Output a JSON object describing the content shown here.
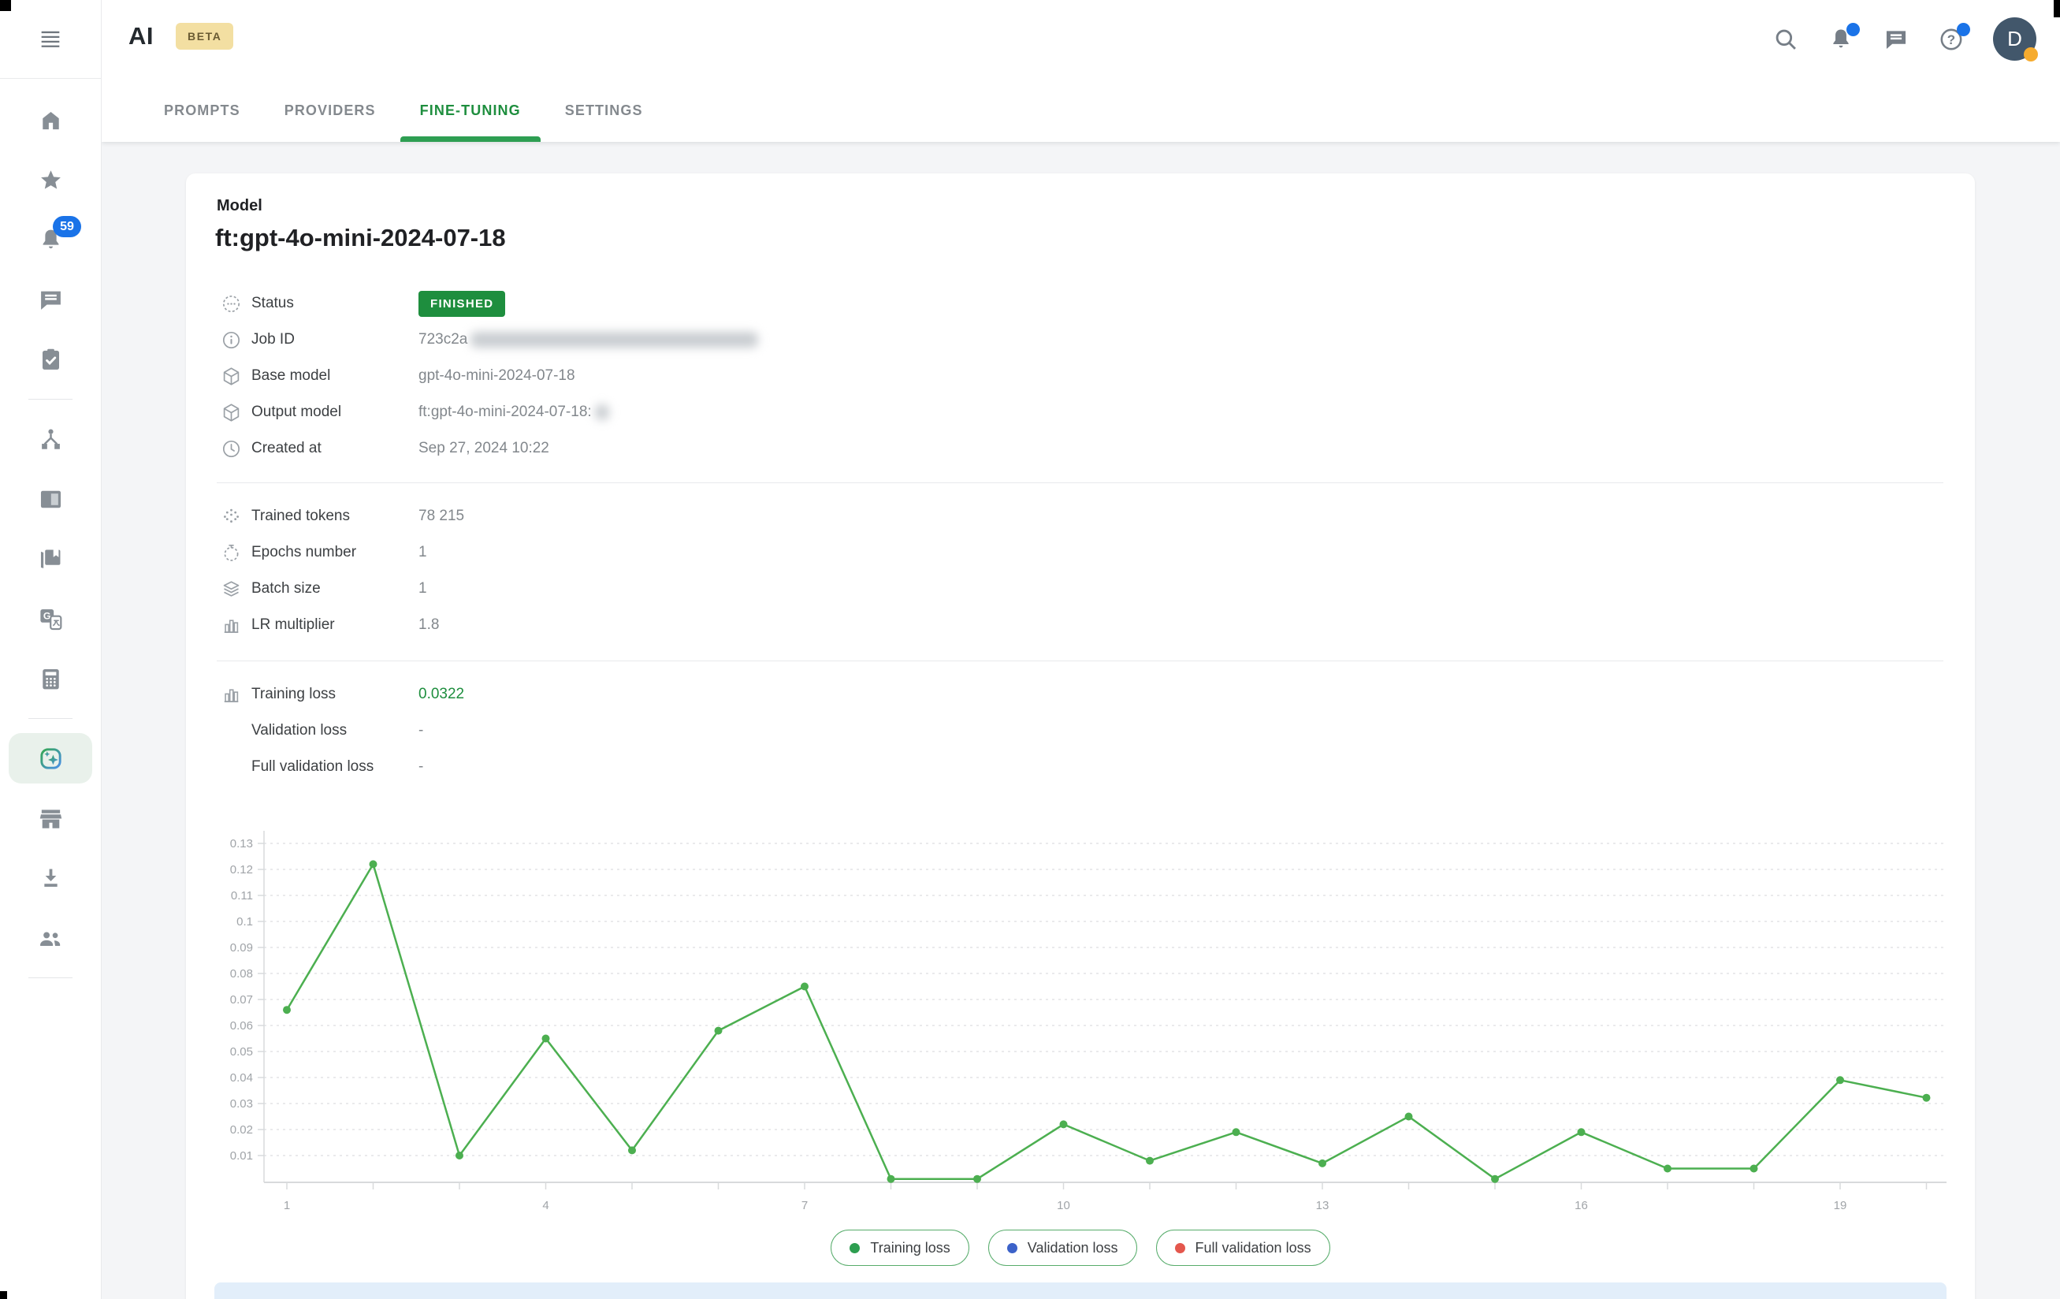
{
  "app": {
    "logo": "AI",
    "beta_badge": "BETA",
    "user_initial": "D"
  },
  "header_actions": [
    {
      "icon": "search",
      "name": "search-button"
    },
    {
      "icon": "bell",
      "name": "notifications-button",
      "dot": true
    },
    {
      "icon": "chat",
      "name": "feedback-button"
    },
    {
      "icon": "help",
      "name": "help-button",
      "dot": true
    }
  ],
  "tabs": [
    {
      "label": "PROMPTS",
      "name": "tab-prompts",
      "active": false
    },
    {
      "label": "PROVIDERS",
      "name": "tab-providers",
      "active": false
    },
    {
      "label": "FINE-TUNING",
      "name": "tab-fine-tuning",
      "active": true
    },
    {
      "label": "SETTINGS",
      "name": "tab-settings",
      "active": false
    }
  ],
  "sidebar": {
    "groups": [
      [
        {
          "icon": "home",
          "name": "sidebar-item-home"
        },
        {
          "icon": "star",
          "name": "sidebar-item-favorites"
        },
        {
          "icon": "bell",
          "name": "sidebar-item-notifications",
          "badge": "59"
        },
        {
          "icon": "chat",
          "name": "sidebar-item-messages"
        },
        {
          "icon": "tasks",
          "name": "sidebar-item-tasks"
        }
      ],
      [
        {
          "icon": "workflow",
          "name": "sidebar-item-workflows"
        },
        {
          "icon": "panel",
          "name": "sidebar-item-boards"
        },
        {
          "icon": "library",
          "name": "sidebar-item-library"
        },
        {
          "icon": "translate",
          "name": "sidebar-item-translate"
        },
        {
          "icon": "calculator",
          "name": "sidebar-item-calculator"
        }
      ],
      [
        {
          "icon": "ai",
          "name": "sidebar-item-ai-fine-tuning",
          "active": true
        },
        {
          "icon": "store",
          "name": "sidebar-item-store"
        },
        {
          "icon": "download",
          "name": "sidebar-item-downloads"
        },
        {
          "icon": "people",
          "name": "sidebar-item-users"
        }
      ]
    ]
  },
  "model": {
    "section_label": "Model",
    "title": "ft:gpt-4o-mini-2024-07-18",
    "info_rows": [
      {
        "icon": "status",
        "label": "Status",
        "badge": "FINISHED",
        "name": "row-status"
      },
      {
        "icon": "info",
        "label": "Job ID",
        "value": "723c2a",
        "blur": 365,
        "name": "row-job-id"
      },
      {
        "icon": "package",
        "label": "Base model",
        "value": "gpt-4o-mini-2024-07-18",
        "name": "row-base-model"
      },
      {
        "icon": "package",
        "label": "Output model",
        "value": "ft:gpt-4o-mini-2024-07-18:",
        "blur": 18,
        "name": "row-output-model"
      },
      {
        "icon": "clock",
        "label": "Created at",
        "value": "Sep 27, 2024 10:22",
        "name": "row-created-at"
      }
    ],
    "param_rows": [
      {
        "icon": "tokens",
        "label": "Trained tokens",
        "value": "78 215",
        "name": "row-trained-tokens"
      },
      {
        "icon": "timer",
        "label": "Epochs number",
        "value": "1",
        "name": "row-epochs-number"
      },
      {
        "icon": "layers",
        "label": "Batch size",
        "value": "1",
        "name": "row-batch-size"
      },
      {
        "icon": "barchart",
        "label": "LR multiplier",
        "value": "1.8",
        "name": "row-lr-multiplier"
      }
    ],
    "loss_rows": [
      {
        "icon": "barchart",
        "label": "Training loss",
        "value": "0.0322",
        "value_color": "#1e8e3e",
        "name": "row-training-loss"
      },
      {
        "icon": "",
        "label": "Validation loss",
        "value": "-",
        "name": "row-validation-loss"
      },
      {
        "icon": "",
        "label": "Full validation loss",
        "value": "-",
        "name": "row-full-validation-loss"
      }
    ]
  },
  "chart_data": {
    "type": "line",
    "title": "",
    "xlabel": "",
    "ylabel": "",
    "x": [
      1,
      2,
      3,
      4,
      5,
      6,
      7,
      8,
      9,
      10,
      11,
      12,
      13,
      14,
      15,
      16,
      17,
      18,
      19,
      20
    ],
    "series": [
      {
        "name": "Training loss",
        "color": "#4caf50",
        "values": [
          0.066,
          0.122,
          0.01,
          0.055,
          0.012,
          0.058,
          0.075,
          0.001,
          0.001,
          0.022,
          0.008,
          0.019,
          0.007,
          0.025,
          0.001,
          0.019,
          0.005,
          0.005,
          0.039,
          0.0322
        ]
      },
      {
        "name": "Validation loss",
        "color": "#3c62c9",
        "values": []
      },
      {
        "name": "Full validation loss",
        "color": "#e4574d",
        "values": []
      }
    ],
    "y_ticks": [
      0.01,
      0.02,
      0.03,
      0.04,
      0.05,
      0.06,
      0.07,
      0.08,
      0.09,
      0.1,
      0.11,
      0.12,
      0.13
    ],
    "ylim": [
      0,
      0.13
    ],
    "x_tick_labels": [
      1,
      4,
      7,
      10,
      13,
      16,
      19
    ],
    "grid": true,
    "legend_position": "bottom",
    "legend": [
      {
        "label": "Training loss",
        "color": "#2d9e50",
        "name": "legend-training-loss"
      },
      {
        "label": "Validation loss",
        "color": "#3c62c9",
        "name": "legend-validation-loss"
      },
      {
        "label": "Full validation loss",
        "color": "#e4574d",
        "name": "legend-full-validation-loss"
      }
    ]
  },
  "colors": {
    "accent_green": "#1e8e3e",
    "chart_line_green": "#4caf50",
    "notification_blue": "#1a73e8",
    "beta_badge_bg": "#f3dfa2",
    "avatar_bg": "#42576b",
    "avatar_status_orange": "#f6ab2e",
    "banner_blue": "#e2eefa",
    "background_gray": "#f4f5f7"
  }
}
